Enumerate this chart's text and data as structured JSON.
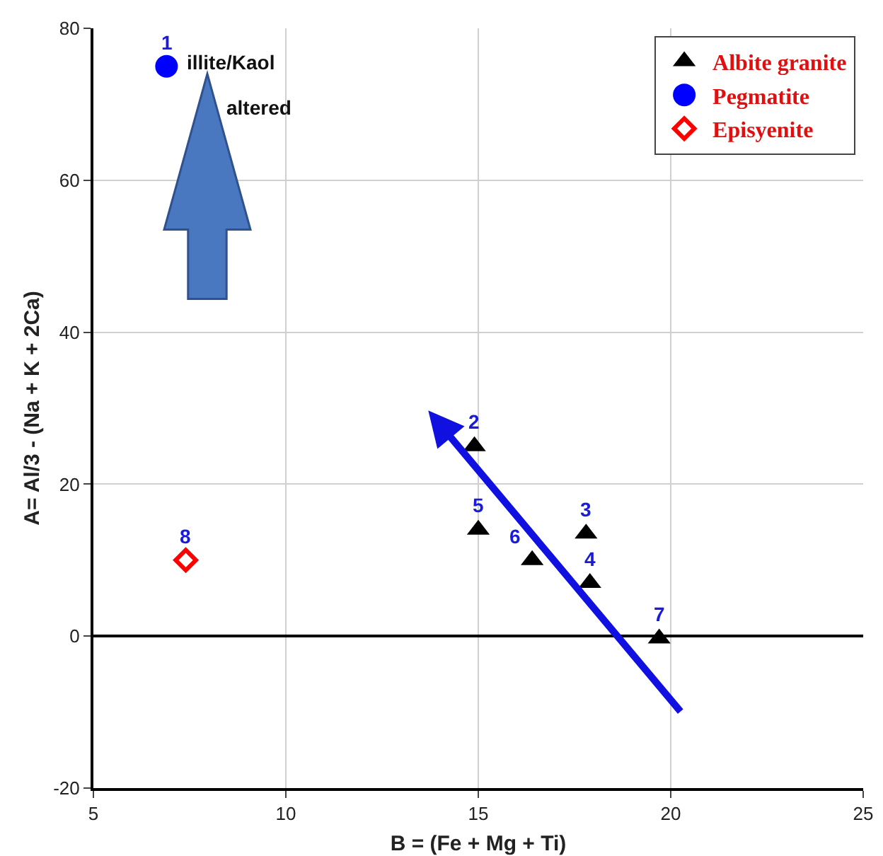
{
  "chart_data": {
    "type": "scatter",
    "xlabel": "B = (Fe + Mg + Ti)",
    "ylabel": "A= Al/3 - (Na + K + 2Ca)",
    "xlim": [
      5,
      25
    ],
    "xticks": [
      5,
      10,
      15,
      20,
      25
    ],
    "ylim": [
      -20,
      80
    ],
    "yticks": [
      -20,
      0,
      20,
      40,
      60,
      80
    ],
    "grid": true,
    "legend": "top right",
    "series": [
      {
        "name": "Albite granite",
        "color": "#000000",
        "marker": "triangle",
        "x": [
          14.9,
          17.8,
          17.9,
          15.0,
          16.4,
          19.7
        ],
        "values": [
          25,
          13.5,
          7,
          14,
          10,
          -0.3
        ]
      },
      {
        "name": "Pegmatite",
        "color": "#0000ff",
        "marker": "circle",
        "x": [
          6.9
        ],
        "values": [
          75
        ]
      },
      {
        "name": "Episyenite",
        "color": "#ff0000",
        "marker": "diamond",
        "x": [
          7.4
        ],
        "values": [
          10
        ]
      }
    ],
    "annotations": [
      {
        "text": "1",
        "x": 6.9,
        "y": 75
      },
      {
        "text": "2",
        "x": 14.9,
        "y": 25
      },
      {
        "text": "3",
        "x": 17.8,
        "y": 13.5
      },
      {
        "text": "4",
        "x": 17.9,
        "y": 7
      },
      {
        "text": "5",
        "x": 15.0,
        "y": 14
      },
      {
        "text": "6",
        "x": 16.4,
        "y": 10
      },
      {
        "text": "7",
        "x": 19.7,
        "y": -0.3
      },
      {
        "text": "8",
        "x": 7.4,
        "y": 10
      },
      "illite/Kaol",
      "altered"
    ]
  }
}
